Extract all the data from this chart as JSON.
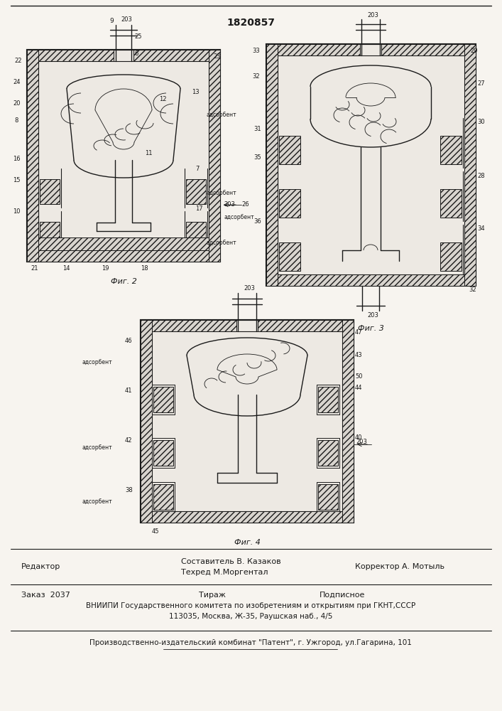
{
  "title_number": "1820857",
  "bg_color": "#f0ede8",
  "line_color": "#1a1a1a",
  "fig2_caption": "Фиг. 2",
  "fig3_caption": "Фиг. 3",
  "fig4_caption": "Фиг. 4",
  "footer_line1_left": "Редактор",
  "footer_line1_center1": "Составитель В. Казаков",
  "footer_line1_center2": "Техред М.Моргентал",
  "footer_line1_right": "Корректор А. Мотыль",
  "footer_line2_left": "Заказ  2037",
  "footer_line2_center": "Тираж",
  "footer_line2_right": "Подписное",
  "footer_line3": "ВНИИПИ Государственного комитета по изобретениям и открытиям при ГКНТ,СССР",
  "footer_line4": "113035, Москва, Ж-35, Раушская наб., 4/5",
  "footer_line5": "Производственно-издательский комбинат \"Патент\", г. Ужгород, ул.Гагарина, 101",
  "paper_color": "#f7f4ef"
}
